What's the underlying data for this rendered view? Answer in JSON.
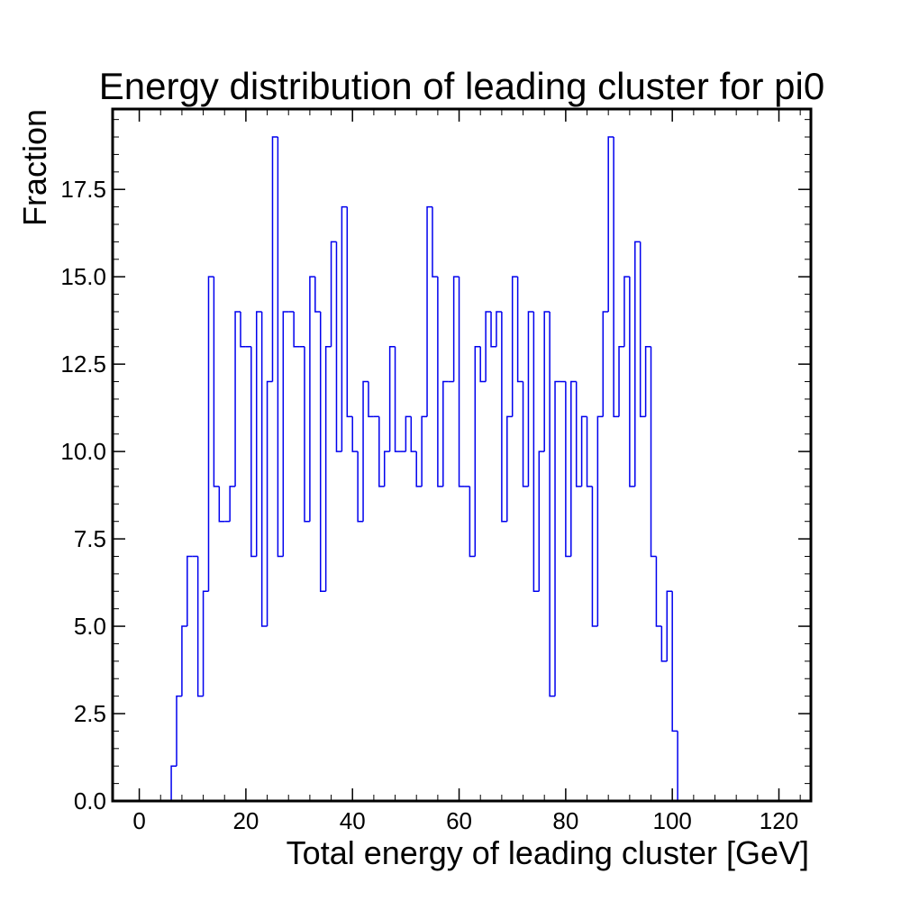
{
  "chart_data": {
    "type": "histogram",
    "title": "Energy distribution of leading cluster for pi0",
    "xlabel": "Total energy of leading cluster [GeV]",
    "ylabel": "Fraction",
    "xlim": [
      -5,
      126
    ],
    "ylim": [
      0,
      19.8
    ],
    "xticks": [
      0,
      20,
      40,
      60,
      80,
      100,
      120
    ],
    "yticks": [
      0.0,
      2.5,
      5.0,
      7.5,
      10.0,
      12.5,
      15.0,
      17.5
    ],
    "xtick_labels": [
      "0",
      "20",
      "40",
      "60",
      "80",
      "100",
      "120"
    ],
    "ytick_labels": [
      "0.0",
      "2.5",
      "5.0",
      "7.5",
      "10.0",
      "12.5",
      "15.0",
      "17.5"
    ],
    "bin_start": 6,
    "bin_width": 1,
    "values": [
      1,
      3,
      5,
      7,
      7,
      3,
      6,
      15,
      9,
      8,
      8,
      9,
      14,
      13,
      13,
      7,
      14,
      5,
      12,
      19,
      7,
      14,
      14,
      13,
      13,
      8,
      15,
      14,
      6,
      13,
      16,
      10,
      17,
      11,
      10,
      8,
      12,
      11,
      11,
      9,
      10,
      13,
      10,
      10,
      11,
      10,
      9,
      11,
      17,
      15,
      9,
      12,
      12,
      15,
      9,
      9,
      7,
      13,
      12,
      14,
      13,
      14,
      8,
      11,
      15,
      12,
      9,
      14,
      6,
      10,
      14,
      3,
      12,
      12,
      7,
      12,
      9,
      11,
      9,
      5,
      11,
      14,
      19,
      11,
      13,
      15,
      9,
      16,
      11,
      13,
      7,
      5,
      4,
      6,
      2
    ],
    "line_color": "#0000ee",
    "grid": false,
    "legend": "none"
  }
}
